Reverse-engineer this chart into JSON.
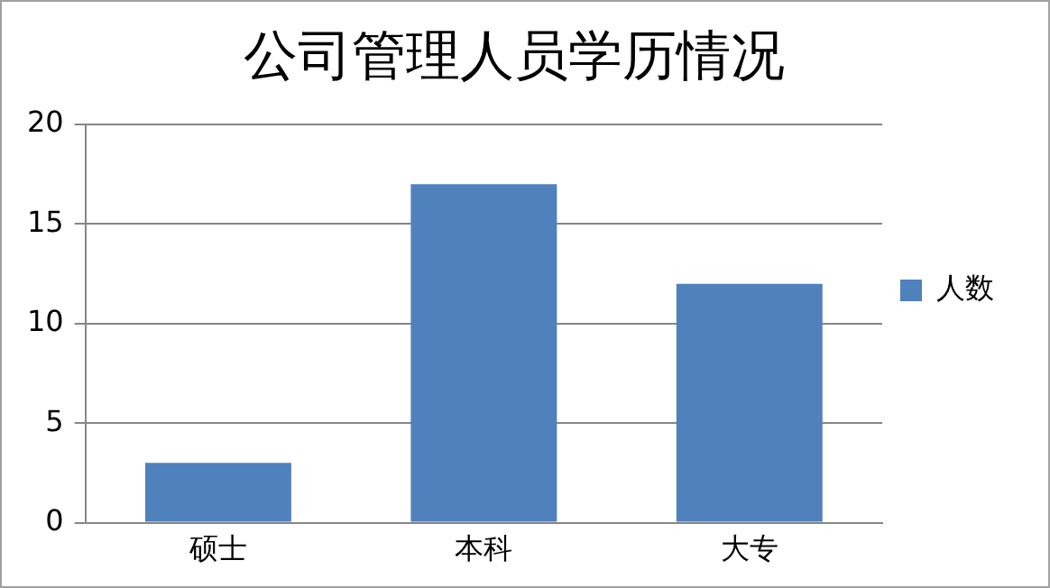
{
  "chart_data": {
    "type": "bar",
    "title": "公司管理人员学历情况",
    "categories": [
      "硕士",
      "本科",
      "大专"
    ],
    "series": [
      {
        "name": "人数",
        "color": "#4f81bd",
        "values": [
          3,
          17,
          12
        ]
      }
    ],
    "ylim": [
      0,
      20
    ],
    "yticks": [
      0,
      5,
      10,
      15,
      20
    ],
    "grid": "y",
    "legend": "right"
  }
}
